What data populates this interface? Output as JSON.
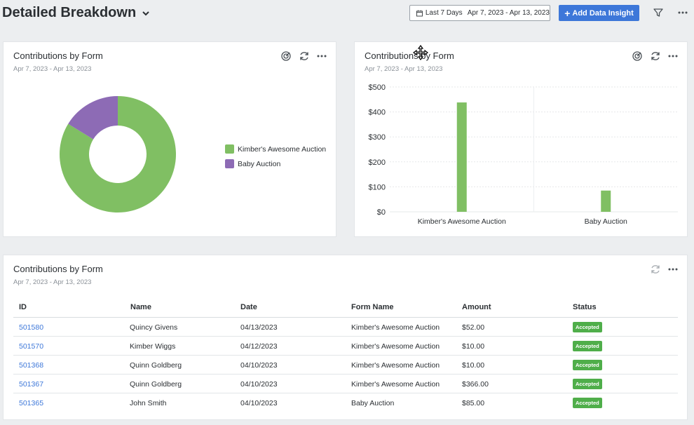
{
  "header": {
    "title": "Detailed Breakdown",
    "date_preset": "Last 7 Days",
    "date_range": "Apr 7, 2023 - Apr 13, 2023",
    "add_button": "Add Data Insight",
    "add_button_plus": "+"
  },
  "donut_card": {
    "title": "Contributions by Form",
    "subtitle": "Apr 7, 2023 - Apr 13, 2023"
  },
  "bar_card": {
    "title": "Contributions by Form",
    "subtitle": "Apr 7, 2023 - Apr 13, 2023"
  },
  "table_card": {
    "title": "Contributions by Form",
    "subtitle": "Apr 7, 2023 - Apr 13, 2023",
    "columns": [
      "ID",
      "Name",
      "Date",
      "Form Name",
      "Amount",
      "Status"
    ],
    "rows": [
      {
        "id": "501580",
        "name": "Quincy Givens",
        "date": "04/13/2023",
        "form": "Kimber's Awesome Auction",
        "amount": "$52.00",
        "status": "Accepted"
      },
      {
        "id": "501570",
        "name": "Kimber Wiggs",
        "date": "04/12/2023",
        "form": "Kimber's Awesome Auction",
        "amount": "$10.00",
        "status": "Accepted"
      },
      {
        "id": "501368",
        "name": "Quinn Goldberg",
        "date": "04/10/2023",
        "form": "Kimber's Awesome Auction",
        "amount": "$10.00",
        "status": "Accepted"
      },
      {
        "id": "501367",
        "name": "Quinn Goldberg",
        "date": "04/10/2023",
        "form": "Kimber's Awesome Auction",
        "amount": "$366.00",
        "status": "Accepted"
      },
      {
        "id": "501365",
        "name": "John Smith",
        "date": "04/10/2023",
        "form": "Baby Auction",
        "amount": "$85.00",
        "status": "Accepted"
      }
    ]
  },
  "colors": {
    "green": "#80bf63",
    "purple": "#8d6bb5",
    "accent": "#3d77d9",
    "status_green": "#4fae4a"
  },
  "icons": {
    "header": [
      "calendar-icon",
      "chevron-down-icon",
      "filter-icon",
      "more-icon"
    ],
    "cards": [
      "target-icon",
      "refresh-icon",
      "more-icon"
    ]
  },
  "chart_data": [
    {
      "type": "pie",
      "donut": true,
      "title": "Contributions by Form",
      "categories": [
        "Kimber's Awesome Auction",
        "Baby Auction"
      ],
      "values": [
        438,
        85
      ],
      "legend": "right"
    },
    {
      "type": "bar",
      "title": "Contributions by Form",
      "categories": [
        "Kimber's Awesome Auction",
        "Baby Auction"
      ],
      "values": [
        438,
        85
      ],
      "xlabel": "",
      "ylabel": "",
      "ylim": [
        0,
        500
      ],
      "yticks": [
        "$0",
        "$100",
        "$200",
        "$300",
        "$400",
        "$500"
      ],
      "grid": true
    }
  ]
}
